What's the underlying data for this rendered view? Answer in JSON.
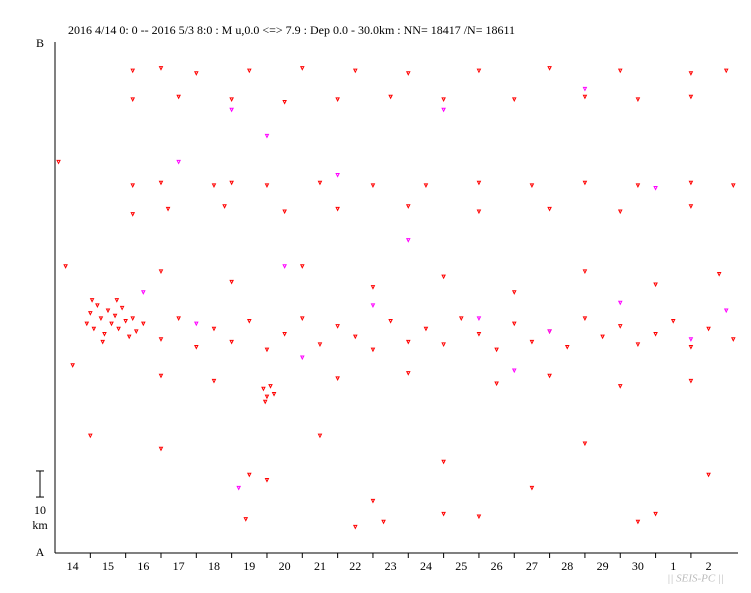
{
  "chart_data": {
    "type": "scatter",
    "title": "2016 4/14 0: 0 -- 2016 5/3 8:0  : M u,0.0 <=> 7.9   : Dep 0.0 - 30.0km :  NN= 18417 /N= 18611",
    "y_top_label": "B",
    "y_bottom_label": "A",
    "scale_bar": 10,
    "scale_unit": "km",
    "footer": "|| SEIS-PC ||",
    "xlim": [
      0,
      19.333
    ],
    "ylim": [
      0,
      196
    ],
    "xticks": [
      {
        "value": 0.5,
        "label": "14"
      },
      {
        "value": 1.5,
        "label": "15"
      },
      {
        "value": 2.5,
        "label": "16"
      },
      {
        "value": 3.5,
        "label": "17"
      },
      {
        "value": 4.5,
        "label": "18"
      },
      {
        "value": 5.5,
        "label": "19"
      },
      {
        "value": 6.5,
        "label": "20"
      },
      {
        "value": 7.5,
        "label": "21"
      },
      {
        "value": 8.5,
        "label": "22"
      },
      {
        "value": 9.5,
        "label": "23"
      },
      {
        "value": 10.5,
        "label": "24"
      },
      {
        "value": 11.5,
        "label": "25"
      },
      {
        "value": 12.5,
        "label": "26"
      },
      {
        "value": 13.5,
        "label": "27"
      },
      {
        "value": 14.5,
        "label": "28"
      },
      {
        "value": 15.5,
        "label": "29"
      },
      {
        "value": 16.5,
        "label": "30"
      },
      {
        "value": 17.5,
        "label": "1"
      },
      {
        "value": 18.5,
        "label": "2"
      }
    ],
    "series": [
      {
        "color": "#ff0000",
        "x": [
          0.9,
          1.0,
          1.1,
          1.2,
          1.3,
          1.4,
          1.5,
          1.6,
          1.7,
          1.8,
          1.9,
          2.0,
          2.1,
          2.2,
          1.05,
          1.35,
          1.75,
          2.3,
          2.2,
          3,
          4,
          5.5,
          7,
          8.5,
          10,
          12,
          14,
          16,
          18,
          19,
          2.2,
          3.5,
          5,
          6.5,
          8,
          9.5,
          11,
          13,
          15,
          16.5,
          18,
          2.2,
          3,
          4.5,
          5,
          6,
          7.5,
          9,
          10.5,
          12,
          13.5,
          15,
          16.5,
          18,
          19.2,
          2.2,
          3.2,
          4.8,
          6.5,
          8,
          10,
          12,
          14,
          16,
          18,
          3,
          5,
          7,
          9,
          11,
          13,
          15,
          17,
          18.8,
          2.5,
          3,
          3.5,
          4,
          4.5,
          5,
          5.5,
          6,
          6.5,
          7,
          7.5,
          8,
          8.5,
          9,
          9.5,
          10,
          10.5,
          11,
          11.5,
          12,
          12.5,
          13,
          13.5,
          14,
          14.5,
          15,
          15.5,
          16,
          16.5,
          17,
          17.5,
          18,
          18.5,
          19.2,
          5.9,
          6.0,
          6.1,
          6.2,
          5.95,
          3,
          4.5,
          8,
          10,
          12.5,
          14,
          16,
          18,
          3,
          5.5,
          7.5,
          9,
          11,
          13.5,
          15,
          17,
          18.5,
          6,
          8.5,
          11,
          5.4,
          9.3,
          16.5,
          12,
          0.1,
          0.3,
          0.5,
          1
        ],
        "values": [
          88,
          92,
          86,
          95,
          90,
          84,
          93,
          88,
          91,
          86,
          94,
          89,
          83,
          90,
          97,
          81,
          97,
          85,
          185,
          186,
          184,
          185,
          186,
          185,
          184,
          185,
          186,
          185,
          184,
          185,
          174,
          175,
          174,
          173,
          174,
          175,
          174,
          174,
          175,
          174,
          175,
          141,
          142,
          141,
          142,
          141,
          142,
          141,
          141,
          142,
          141,
          142,
          141,
          142,
          141,
          130,
          132,
          133,
          131,
          132,
          133,
          131,
          132,
          131,
          133,
          108,
          104,
          110,
          102,
          106,
          100,
          108,
          103,
          107,
          88,
          82,
          90,
          79,
          86,
          81,
          89,
          78,
          84,
          90,
          80,
          87,
          83,
          78,
          89,
          81,
          86,
          80,
          90,
          84,
          78,
          88,
          81,
          85,
          79,
          90,
          83,
          87,
          80,
          84,
          89,
          79,
          86,
          82,
          63,
          60,
          64,
          61,
          58,
          68,
          66,
          67,
          69,
          65,
          68,
          64,
          66,
          40,
          30,
          45,
          20,
          35,
          25,
          42,
          15,
          30,
          28,
          10,
          15,
          13,
          12,
          12,
          14,
          150,
          110,
          72,
          45
        ]
      },
      {
        "color": "#ff00ff",
        "x": [
          5,
          6,
          3.5,
          8,
          10,
          12,
          14,
          4,
          16,
          18,
          2.5,
          7,
          11,
          15,
          17,
          9,
          13,
          5.2,
          19,
          6.5
        ],
        "values": [
          170,
          160,
          150,
          145,
          120,
          90,
          85,
          88,
          96,
          82,
          100,
          75,
          170,
          178,
          140,
          95,
          70,
          25,
          93,
          110
        ]
      }
    ]
  }
}
